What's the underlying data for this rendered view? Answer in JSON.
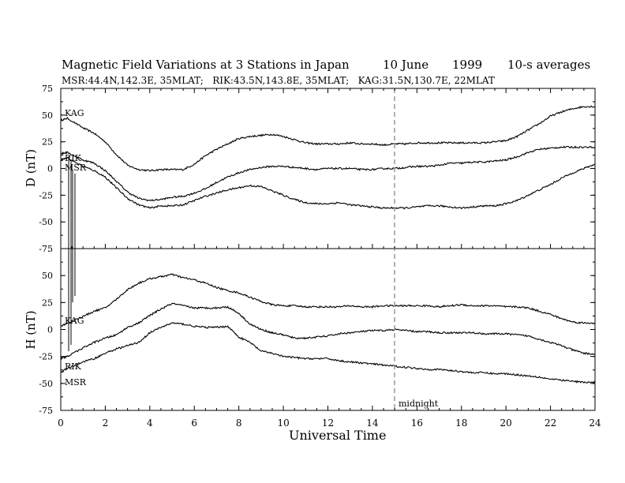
{
  "header": {
    "title_main": "Magnetic Field Variations at 3 Stations in Japan",
    "title_date": "10 June",
    "title_year": "1999",
    "title_avg": "10-s averages",
    "subtitle": "MSR:44.4N,142.3E, 35MLAT;   RIK:43.5N,143.8E, 35MLAT;   KAG:31.5N,130.7E, 22MLAT"
  },
  "annotations": {
    "midnight": "midnight"
  },
  "chart_data": [
    {
      "type": "line",
      "ylabel": "D (nT)",
      "ylim": [
        -75,
        75
      ],
      "yticks": [
        75,
        50,
        25,
        0,
        -25,
        -50,
        -75
      ],
      "xlim": [
        0,
        24
      ],
      "series": [
        {
          "name": "KAG",
          "x": [
            0,
            0.3,
            1,
            1.5,
            2,
            2.5,
            3,
            3.5,
            4,
            4.5,
            5,
            5.5,
            6,
            6.5,
            7,
            7.5,
            8,
            8.5,
            9,
            9.5,
            10,
            10.5,
            11,
            11.5,
            12,
            12.5,
            13,
            13.5,
            14,
            14.5,
            15,
            15.5,
            16,
            16.5,
            17,
            17.5,
            18,
            18.5,
            19,
            19.5,
            20,
            20.5,
            21,
            21.5,
            22,
            22.5,
            23,
            23.5,
            24
          ],
          "y": [
            45,
            47,
            38,
            33,
            25,
            13,
            3,
            -1,
            -2,
            -1,
            -1,
            -1,
            4,
            12,
            18,
            23,
            28,
            30,
            31,
            32,
            30,
            27,
            24,
            23,
            23,
            23,
            24,
            23,
            23,
            22,
            23,
            23,
            24,
            24,
            24,
            24,
            24,
            24,
            24,
            25,
            26,
            30,
            36,
            42,
            49,
            53,
            56,
            58,
            58
          ]
        },
        {
          "name": "RIK",
          "x": [
            0,
            0.3,
            1,
            1.5,
            2,
            2.5,
            3,
            3.5,
            4,
            4.5,
            5,
            5.5,
            6,
            6.5,
            7,
            7.5,
            8,
            8.5,
            9,
            9.5,
            10,
            10.5,
            11,
            11.5,
            12,
            12.5,
            13,
            13.5,
            14,
            14.5,
            15,
            15.5,
            16,
            16.5,
            17,
            17.5,
            18,
            18.5,
            19,
            19.5,
            20,
            20.5,
            21,
            21.5,
            22,
            22.5,
            23,
            23.5,
            24
          ],
          "y": [
            14,
            15,
            8,
            5,
            -2,
            -12,
            -22,
            -28,
            -30,
            -29,
            -27,
            -26,
            -23,
            -19,
            -13,
            -8,
            -4,
            -1,
            1,
            2,
            2,
            1,
            0,
            -1,
            0,
            0,
            0,
            -1,
            -1,
            0,
            0,
            1,
            2,
            2,
            3,
            5,
            5,
            6,
            6,
            7,
            8,
            11,
            15,
            18,
            19,
            20,
            20,
            20,
            20
          ]
        },
        {
          "name": "MSR",
          "x": [
            0,
            0.3,
            1,
            1.5,
            2,
            2.5,
            3,
            3.5,
            4,
            4.5,
            5,
            5.5,
            6,
            6.5,
            7,
            7.5,
            8,
            8.5,
            9,
            9.5,
            10,
            10.5,
            11,
            11.5,
            12,
            12.5,
            13,
            13.5,
            14,
            14.5,
            15,
            15.5,
            16,
            16.5,
            17,
            17.5,
            18,
            18.5,
            19,
            19.5,
            20,
            20.5,
            21,
            21.5,
            22,
            22.5,
            23,
            23.5,
            24
          ],
          "y": [
            8,
            10,
            2,
            -2,
            -8,
            -18,
            -28,
            -34,
            -37,
            -35,
            -35,
            -34,
            -30,
            -26,
            -23,
            -20,
            -18,
            -16,
            -17,
            -21,
            -25,
            -29,
            -32,
            -33,
            -33,
            -32,
            -34,
            -35,
            -36,
            -37,
            -37,
            -37,
            -36,
            -35,
            -35,
            -36,
            -37,
            -36,
            -35,
            -35,
            -33,
            -30,
            -25,
            -20,
            -15,
            -9,
            -4,
            0,
            4
          ]
        }
      ],
      "series_labels": [
        "KAG",
        "RIK",
        "MSR"
      ]
    },
    {
      "type": "line",
      "ylabel": "H (nT)",
      "ylim": [
        -75,
        75
      ],
      "yticks": [
        50,
        25,
        0,
        -25,
        -50,
        -75
      ],
      "xlim": [
        0,
        24
      ],
      "xticks": [
        0,
        2,
        4,
        6,
        8,
        10,
        12,
        14,
        16,
        18,
        20,
        22,
        24
      ],
      "xlabel": "Universal Time",
      "series": [
        {
          "name": "KAG",
          "x": [
            0,
            0.3,
            1,
            1.5,
            2,
            2.5,
            3,
            3.5,
            4,
            4.5,
            5,
            5.5,
            6,
            6.5,
            7,
            7.5,
            8,
            8.5,
            9,
            9.5,
            10,
            10.5,
            11,
            11.5,
            12,
            12.5,
            13,
            13.5,
            14,
            14.5,
            15,
            15.5,
            16,
            16.5,
            17,
            17.5,
            18,
            18.5,
            19,
            19.5,
            20,
            20.5,
            21,
            21.5,
            22,
            22.5,
            23,
            23.5,
            24
          ],
          "y": [
            3,
            6,
            12,
            17,
            20,
            28,
            37,
            43,
            47,
            49,
            51,
            48,
            46,
            43,
            39,
            36,
            34,
            30,
            26,
            23,
            22,
            22,
            21,
            21,
            21,
            21,
            22,
            21,
            21,
            22,
            22,
            22,
            22,
            22,
            21,
            22,
            23,
            22,
            22,
            22,
            21,
            21,
            20,
            17,
            14,
            10,
            7,
            6,
            6
          ]
        },
        {
          "name": "RIK",
          "x": [
            0,
            0.3,
            1,
            1.5,
            2,
            2.5,
            3,
            3.5,
            4,
            4.5,
            5,
            5.5,
            6,
            6.5,
            7,
            7.5,
            8,
            8.5,
            9,
            9.5,
            10,
            10.5,
            11,
            11.5,
            12,
            12.5,
            13,
            13.5,
            14,
            14.5,
            15,
            15.5,
            16,
            16.5,
            17,
            17.5,
            18,
            18.5,
            19,
            19.5,
            20,
            20.5,
            21,
            21.5,
            22,
            22.5,
            23,
            23.5,
            24
          ],
          "y": [
            -27,
            -25,
            -17,
            -12,
            -8,
            -5,
            2,
            6,
            13,
            19,
            24,
            22,
            20,
            20,
            20,
            21,
            15,
            5,
            0,
            -3,
            -5,
            -8,
            -8,
            -7,
            -6,
            -4,
            -3,
            -2,
            -1,
            -1,
            0,
            -1,
            -2,
            -2,
            -3,
            -3,
            -3,
            -3,
            -4,
            -4,
            -4,
            -5,
            -6,
            -9,
            -12,
            -15,
            -19,
            -22,
            -23
          ]
        },
        {
          "name": "MSR",
          "x": [
            0,
            0.3,
            1,
            1.5,
            2,
            2.5,
            3,
            3.5,
            4,
            4.5,
            5,
            5.5,
            6,
            6.5,
            7,
            7.5,
            8,
            8.5,
            9,
            9.5,
            10,
            10.5,
            11,
            11.5,
            12,
            12.5,
            13,
            13.5,
            14,
            14.5,
            15,
            15.5,
            16,
            16.5,
            17,
            17.5,
            18,
            18.5,
            19,
            19.5,
            20,
            20.5,
            21,
            21.5,
            22,
            22.5,
            23,
            23.5,
            24
          ],
          "y": [
            -40,
            -36,
            -30,
            -27,
            -22,
            -18,
            -15,
            -12,
            -3,
            2,
            6,
            5,
            3,
            2,
            2,
            3,
            -7,
            -12,
            -20,
            -22,
            -25,
            -26,
            -27,
            -27,
            -27,
            -29,
            -30,
            -31,
            -32,
            -33,
            -34,
            -35,
            -36,
            -37,
            -37,
            -38,
            -39,
            -40,
            -40,
            -41,
            -41,
            -42,
            -43,
            -44,
            -46,
            -47,
            -48,
            -49,
            -49
          ]
        }
      ],
      "series_labels": [
        "KAG",
        "RIK",
        "MSR"
      ]
    }
  ]
}
